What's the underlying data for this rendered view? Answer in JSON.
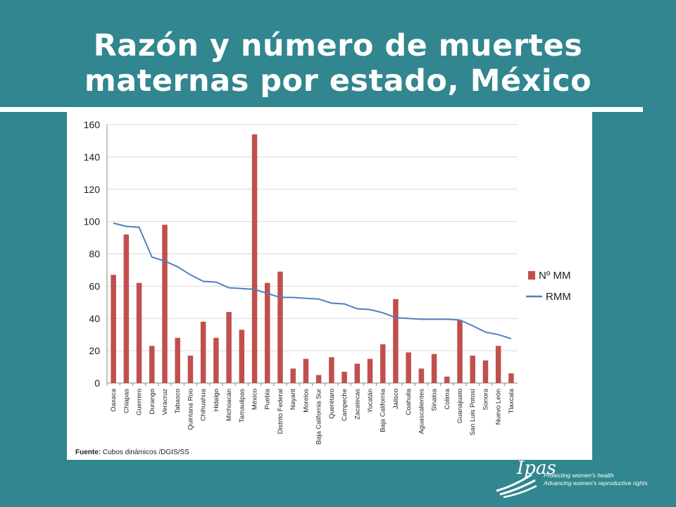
{
  "slide": {
    "title_line1": "Razón y número de muertes",
    "title_line2": "maternas por estado, México"
  },
  "source": {
    "label": "Fuente:",
    "text": "Cubos dinámicos /DGIS/SS"
  },
  "logo": {
    "wordmark": "Ipas",
    "tagline1": "Protecting women's health",
    "tagline2": "Advancing women's reproductive rights"
  },
  "chart_data": {
    "type": "bar",
    "title": "",
    "xlabel": "",
    "ylabel": "",
    "ylim": [
      0,
      160
    ],
    "yticks": [
      0,
      20,
      40,
      60,
      80,
      100,
      120,
      140,
      160
    ],
    "grid": true,
    "legend_position": "right",
    "categories": [
      "Oaxaca",
      "Chiapas",
      "Guerrero",
      "Durango",
      "Veracruz",
      "Tabasco",
      "Quintana Roo",
      "Chihuahua",
      "Hidalgo",
      "Michoacán",
      "Tamaulipas",
      "México",
      "Puebla",
      "Distrito Federal",
      "Nayarit",
      "Morelos",
      "Baja California Sur",
      "Querétaro",
      "Campeche",
      "Zacatecas",
      "Yucatán",
      "Baja California",
      "Jalisco",
      "Coahuila",
      "Aguascalientes",
      "Sinaloa",
      "Colima",
      "Guanajuato",
      "San Luis Potosí",
      "Sonora",
      "Nuevo León",
      "Tlaxcala"
    ],
    "series": [
      {
        "name": "Nº MM",
        "kind": "bar",
        "color": "#c0504d",
        "values": [
          67,
          92,
          62,
          23,
          98,
          28,
          17,
          38,
          28,
          44,
          33,
          154,
          62,
          69,
          9,
          15,
          5,
          16,
          7,
          12,
          15,
          24,
          52,
          19,
          9,
          18,
          4,
          39,
          17,
          14,
          23,
          6
        ]
      },
      {
        "name": "RMM",
        "kind": "line",
        "color": "#4f81bd",
        "values": [
          99,
          97,
          96.5,
          78,
          75.5,
          72,
          67,
          63,
          62.5,
          59,
          58.5,
          58,
          55.5,
          53,
          53,
          52.5,
          52,
          49.5,
          49,
          46,
          45.5,
          43.5,
          40.5,
          40,
          39.5,
          39.5,
          39.5,
          39,
          35.5,
          31.5,
          30,
          27.5
        ]
      }
    ]
  }
}
